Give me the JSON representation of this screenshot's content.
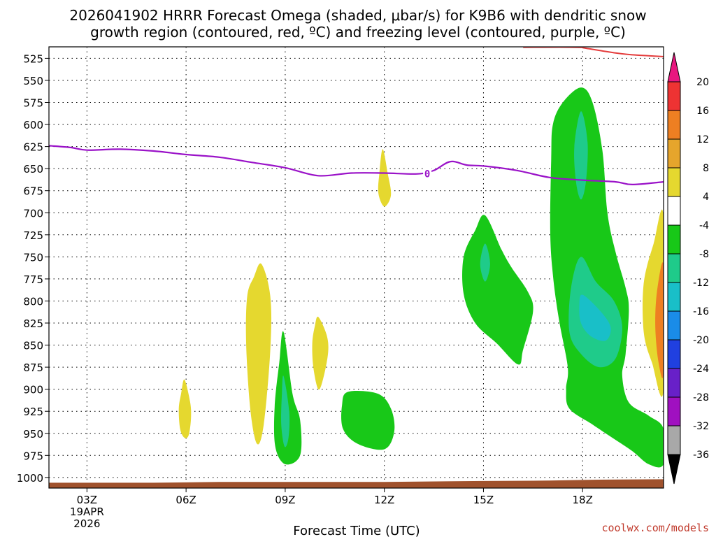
{
  "chart_data": {
    "type": "contour",
    "title_line1": "2026041902 HRRR Forecast Omega (shaded, μbar/s) for K9B6 with dendritic snow",
    "title_line2": "growth region (contoured, red, ºC) and freezing level (contoured, purple, ºC)",
    "xlabel": "Forecast Time (UTC)",
    "credit": "coolwx.com/models",
    "x_range_hours": [
      1.85,
      20.45
    ],
    "y_range_mb": [
      512,
      1012
    ],
    "x_ticks": [
      {
        "hour": 3,
        "label": "03Z",
        "sub1": "19APR",
        "sub2": "2026"
      },
      {
        "hour": 6,
        "label": "06Z",
        "sub1": "",
        "sub2": ""
      },
      {
        "hour": 9,
        "label": "09Z",
        "sub1": "",
        "sub2": ""
      },
      {
        "hour": 12,
        "label": "12Z",
        "sub1": "",
        "sub2": ""
      },
      {
        "hour": 15,
        "label": "15Z",
        "sub1": "",
        "sub2": ""
      },
      {
        "hour": 18,
        "label": "18Z",
        "sub1": "",
        "sub2": ""
      }
    ],
    "y_ticks": [
      {
        "mb": 525,
        "label": "525"
      },
      {
        "mb": 550,
        "label": "550"
      },
      {
        "mb": 575,
        "label": "575"
      },
      {
        "mb": 600,
        "label": "600"
      },
      {
        "mb": 625,
        "label": "625"
      },
      {
        "mb": 650,
        "label": "650"
      },
      {
        "mb": 675,
        "label": "675"
      },
      {
        "mb": 700,
        "label": "700"
      },
      {
        "mb": 725,
        "label": "725"
      },
      {
        "mb": 750,
        "label": "750"
      },
      {
        "mb": 775,
        "label": "775"
      },
      {
        "mb": 800,
        "label": "800"
      },
      {
        "mb": 825,
        "label": "825"
      },
      {
        "mb": 850,
        "label": "850"
      },
      {
        "mb": 875,
        "label": "875"
      },
      {
        "mb": 900,
        "label": "900"
      },
      {
        "mb": 925,
        "label": "925"
      },
      {
        "mb": 950,
        "label": "950"
      },
      {
        "mb": 975,
        "label": "975"
      },
      {
        "mb": 1000,
        "label": "1000"
      }
    ],
    "colorbar": {
      "labels": [
        "20",
        "16",
        "12",
        "8",
        "4",
        "-4",
        "-8",
        "-12",
        "-16",
        "-20",
        "-24",
        "-28",
        "-32",
        "-36"
      ],
      "top_triangle_color": "#e8177f",
      "bottom_triangle_color": "#000000",
      "bands": [
        {
          "from": "20",
          "to": "16",
          "color": "#ee3333"
        },
        {
          "from": "16",
          "to": "12",
          "color": "#ee7f22"
        },
        {
          "from": "12",
          "to": "8",
          "color": "#e6a52c"
        },
        {
          "from": "8",
          "to": "4",
          "color": "#e5d82f"
        },
        {
          "from": "4",
          "to": "-4",
          "color": "#ffffff"
        },
        {
          "from": "-4",
          "to": "-8",
          "color": "#18c818"
        },
        {
          "from": "-8",
          "to": "-12",
          "color": "#1fcb8a"
        },
        {
          "from": "-12",
          "to": "-16",
          "color": "#19bfc8"
        },
        {
          "from": "-16",
          "to": "-20",
          "color": "#1a8ce8"
        },
        {
          "from": "-20",
          "to": "-24",
          "color": "#2040e0"
        },
        {
          "from": "-24",
          "to": "-28",
          "color": "#6820c8"
        },
        {
          "from": "-28",
          "to": "-32",
          "color": "#a010c0"
        },
        {
          "from": "-32",
          "to": "-36",
          "color": "#a8a8a8"
        }
      ]
    },
    "freezing_level": {
      "label": "0",
      "label_point": {
        "hour": 13.3,
        "mb": 656
      },
      "color": "#9a12c8",
      "points": [
        [
          1.85,
          624
        ],
        [
          2.5,
          626
        ],
        [
          3,
          629
        ],
        [
          4,
          628
        ],
        [
          5,
          630
        ],
        [
          6,
          634
        ],
        [
          7,
          637
        ],
        [
          8,
          643
        ],
        [
          9,
          649
        ],
        [
          10,
          658
        ],
        [
          11,
          655
        ],
        [
          12,
          655
        ],
        [
          13,
          656
        ],
        [
          13.5,
          652
        ],
        [
          14,
          642
        ],
        [
          14.5,
          646
        ],
        [
          15,
          647
        ],
        [
          16,
          652
        ],
        [
          17,
          660
        ],
        [
          18,
          663
        ],
        [
          19,
          665
        ],
        [
          19.5,
          668
        ],
        [
          20.45,
          665
        ]
      ]
    },
    "dendritic_zone": {
      "color": "#e43c3c",
      "points": [
        [
          18,
          513
        ],
        [
          19,
          519
        ],
        [
          19.5,
          521
        ],
        [
          20.45,
          523
        ]
      ]
    },
    "dendritic_top_edge": {
      "color": "#e43c3c",
      "points": [
        [
          16.2,
          512.5
        ],
        [
          17.3,
          512.3
        ],
        [
          18.0,
          512.6
        ]
      ]
    },
    "terrain": {
      "color": "#a0522d",
      "points": [
        [
          1.85,
          1006
        ],
        [
          5,
          1006
        ],
        [
          7,
          1005
        ],
        [
          12,
          1005
        ],
        [
          15,
          1004
        ],
        [
          17,
          1003.5
        ],
        [
          18.5,
          1002.5
        ],
        [
          20.45,
          1002
        ]
      ]
    },
    "shaded_regions": [
      {
        "id": "y6z",
        "color": "#e5d82f",
        "points": [
          [
            5.95,
            889
          ],
          [
            6.12,
            914
          ],
          [
            6.15,
            932
          ],
          [
            6.08,
            952
          ],
          [
            5.95,
            955
          ],
          [
            5.82,
            945
          ],
          [
            5.78,
            922
          ],
          [
            5.85,
            905
          ]
        ]
      },
      {
        "id": "y8z",
        "color": "#e5d82f",
        "points": [
          [
            8.28,
            758
          ],
          [
            8.55,
            795
          ],
          [
            8.55,
            855
          ],
          [
            8.35,
            940
          ],
          [
            8.15,
            962
          ],
          [
            7.95,
            925
          ],
          [
            7.82,
            850
          ],
          [
            7.85,
            795
          ],
          [
            8.05,
            773
          ]
        ]
      },
      {
        "id": "g9z",
        "color": "#18c818",
        "points": [
          [
            8.95,
            835
          ],
          [
            9.22,
            905
          ],
          [
            9.45,
            935
          ],
          [
            9.45,
            975
          ],
          [
            9.0,
            985
          ],
          [
            8.7,
            965
          ],
          [
            8.68,
            920
          ],
          [
            8.82,
            870
          ]
        ]
      },
      {
        "id": "t9z",
        "color": "#1fcb8a",
        "points": [
          [
            8.95,
            885
          ],
          [
            9.12,
            925
          ],
          [
            9.1,
            955
          ],
          [
            8.98,
            965
          ],
          [
            8.88,
            940
          ],
          [
            8.9,
            905
          ]
        ]
      },
      {
        "id": "y10z",
        "color": "#e5d82f",
        "points": [
          [
            10.0,
            818
          ],
          [
            10.25,
            838
          ],
          [
            10.3,
            858
          ],
          [
            10.15,
            888
          ],
          [
            10.0,
            900
          ],
          [
            9.85,
            875
          ],
          [
            9.82,
            848
          ],
          [
            9.9,
            828
          ]
        ]
      },
      {
        "id": "g11z",
        "color": "#18c818",
        "points": [
          [
            10.9,
            903
          ],
          [
            11.8,
            905
          ],
          [
            12.2,
            922
          ],
          [
            12.3,
            948
          ],
          [
            12.0,
            968
          ],
          [
            11.2,
            962
          ],
          [
            10.75,
            945
          ],
          [
            10.72,
            918
          ]
        ]
      },
      {
        "id": "y12z",
        "color": "#e5d82f",
        "points": [
          [
            11.95,
            628
          ],
          [
            12.1,
            655
          ],
          [
            12.2,
            680
          ],
          [
            12.0,
            693
          ],
          [
            11.82,
            678
          ],
          [
            11.85,
            655
          ]
        ]
      },
      {
        "id": "g15z",
        "color": "#18c818",
        "points": [
          [
            15.05,
            703
          ],
          [
            15.55,
            742
          ],
          [
            15.85,
            762
          ],
          [
            16.35,
            790
          ],
          [
            16.5,
            812
          ],
          [
            16.2,
            855
          ],
          [
            16.05,
            872
          ],
          [
            15.4,
            848
          ],
          [
            14.75,
            825
          ],
          [
            14.4,
            792
          ],
          [
            14.4,
            750
          ],
          [
            14.75,
            720
          ]
        ]
      },
      {
        "id": "t15z",
        "color": "#1fcb8a",
        "points": [
          [
            15.05,
            735
          ],
          [
            15.2,
            758
          ],
          [
            15.05,
            778
          ],
          [
            14.9,
            758
          ]
        ]
      },
      {
        "id": "g18z",
        "color": "#18c818",
        "points": [
          [
            17.95,
            558
          ],
          [
            18.3,
            575
          ],
          [
            18.6,
            630
          ],
          [
            18.75,
            700
          ],
          [
            19.0,
            745
          ],
          [
            19.3,
            785
          ],
          [
            19.4,
            810
          ],
          [
            19.3,
            860
          ],
          [
            19.2,
            885
          ],
          [
            19.4,
            915
          ],
          [
            20.0,
            930
          ],
          [
            20.45,
            945
          ],
          [
            20.45,
            985
          ],
          [
            20.0,
            985
          ],
          [
            19.5,
            970
          ],
          [
            18.9,
            955
          ],
          [
            18.3,
            940
          ],
          [
            17.6,
            922
          ],
          [
            17.5,
            900
          ],
          [
            17.55,
            875
          ],
          [
            17.28,
            820
          ],
          [
            17.1,
            770
          ],
          [
            17.02,
            720
          ],
          [
            17.05,
            640
          ],
          [
            17.1,
            600
          ],
          [
            17.4,
            575
          ]
        ]
      },
      {
        "id": "t18z_upper",
        "color": "#1fcb8a",
        "points": [
          [
            17.95,
            585
          ],
          [
            18.15,
            620
          ],
          [
            18.1,
            665
          ],
          [
            17.95,
            685
          ],
          [
            17.8,
            665
          ],
          [
            17.75,
            625
          ]
        ]
      },
      {
        "id": "t18z_lower",
        "color": "#1fcb8a",
        "points": [
          [
            17.95,
            750
          ],
          [
            18.4,
            778
          ],
          [
            18.95,
            800
          ],
          [
            19.2,
            830
          ],
          [
            19.0,
            865
          ],
          [
            18.5,
            875
          ],
          [
            17.95,
            860
          ],
          [
            17.6,
            835
          ],
          [
            17.65,
            785
          ]
        ]
      },
      {
        "id": "c18z",
        "color": "#19bfc8",
        "points": [
          [
            18.0,
            793
          ],
          [
            18.55,
            812
          ],
          [
            18.85,
            830
          ],
          [
            18.7,
            845
          ],
          [
            18.25,
            840
          ],
          [
            17.95,
            825
          ],
          [
            17.9,
            805
          ]
        ]
      },
      {
        "id": "y20z",
        "color": "#e5d82f",
        "points": [
          [
            20.45,
            705
          ],
          [
            20.45,
            900
          ],
          [
            20.1,
            870
          ],
          [
            19.85,
            835
          ],
          [
            19.85,
            780
          ],
          [
            20.15,
            735
          ]
        ]
      },
      {
        "id": "o20z",
        "color": "#ee7f22",
        "points": [
          [
            20.45,
            760
          ],
          [
            20.45,
            880
          ],
          [
            20.3,
            870
          ],
          [
            20.2,
            830
          ],
          [
            20.25,
            790
          ]
        ]
      }
    ]
  }
}
